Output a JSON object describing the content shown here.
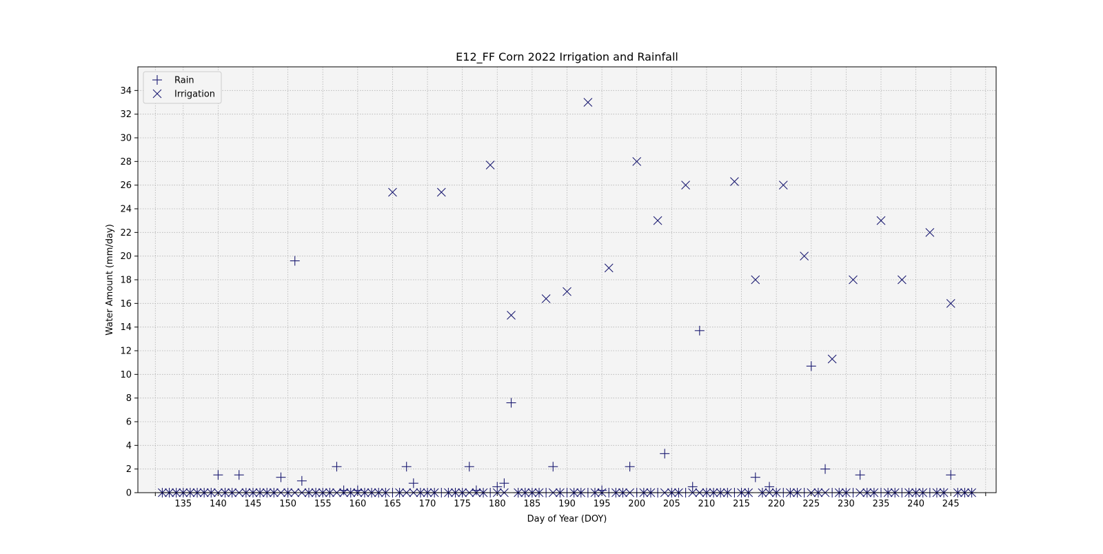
{
  "chart_data": {
    "type": "scatter",
    "title": "E12_FF Corn 2022 Irrigation and Rainfall",
    "xlabel": "Day of Year (DOY)",
    "ylabel": "Water Amount (mm/day)",
    "xlim": [
      128.5,
      251.5
    ],
    "ylim": [
      0,
      36
    ],
    "xticks": [
      131,
      135,
      140,
      145,
      150,
      155,
      160,
      165,
      170,
      175,
      180,
      185,
      190,
      195,
      200,
      205,
      210,
      215,
      220,
      225,
      230,
      235,
      240,
      245,
      250
    ],
    "xtick_labels": [
      "",
      "135",
      "140",
      "145",
      "150",
      "155",
      "160",
      "165",
      "170",
      "175",
      "180",
      "185",
      "190",
      "195",
      "200",
      "205",
      "210",
      "215",
      "220",
      "225",
      "230",
      "235",
      "240",
      "245",
      ""
    ],
    "yticks": [
      0,
      2,
      4,
      6,
      8,
      10,
      12,
      14,
      16,
      18,
      20,
      22,
      24,
      26,
      28,
      30,
      32,
      34
    ],
    "grid": true,
    "legend_position": "top-left",
    "colors": {
      "marker": "#191970",
      "plot_background": "#f4f4f4",
      "grid": "#b0b0b0"
    },
    "series": [
      {
        "name": "Rain",
        "marker": "plus",
        "points": [
          [
            132,
            0
          ],
          [
            133,
            0
          ],
          [
            134,
            0
          ],
          [
            135,
            0
          ],
          [
            136,
            0
          ],
          [
            137,
            0
          ],
          [
            138,
            0
          ],
          [
            139,
            0
          ],
          [
            140,
            1.5
          ],
          [
            141,
            0
          ],
          [
            142,
            0
          ],
          [
            143,
            1.5
          ],
          [
            144,
            0
          ],
          [
            145,
            0
          ],
          [
            146,
            0
          ],
          [
            147,
            0
          ],
          [
            148,
            0
          ],
          [
            149,
            1.3
          ],
          [
            150,
            0
          ],
          [
            151,
            19.6
          ],
          [
            152,
            1.0
          ],
          [
            153,
            0
          ],
          [
            154,
            0
          ],
          [
            155,
            0
          ],
          [
            156,
            0
          ],
          [
            157,
            2.2
          ],
          [
            158,
            0.2
          ],
          [
            159,
            0
          ],
          [
            160,
            0.2
          ],
          [
            161,
            0
          ],
          [
            162,
            0
          ],
          [
            163,
            0
          ],
          [
            164,
            0
          ],
          [
            165,
            0
          ],
          [
            166,
            0
          ],
          [
            167,
            2.2
          ],
          [
            168,
            0.8
          ],
          [
            169,
            0
          ],
          [
            170,
            0
          ],
          [
            171,
            0
          ],
          [
            172,
            0
          ],
          [
            173,
            0
          ],
          [
            174,
            0
          ],
          [
            175,
            0
          ],
          [
            176,
            2.2
          ],
          [
            177,
            0.2
          ],
          [
            178,
            0
          ],
          [
            179,
            0
          ],
          [
            180,
            0.5
          ],
          [
            181,
            0.8
          ],
          [
            182,
            7.6
          ],
          [
            183,
            0
          ],
          [
            184,
            0
          ],
          [
            185,
            0
          ],
          [
            186,
            0
          ],
          [
            187,
            0
          ],
          [
            188,
            2.2
          ],
          [
            189,
            0
          ],
          [
            190,
            0
          ],
          [
            191,
            0
          ],
          [
            192,
            0
          ],
          [
            193,
            0
          ],
          [
            194,
            0
          ],
          [
            195,
            0.2
          ],
          [
            196,
            0
          ],
          [
            197,
            0
          ],
          [
            198,
            0
          ],
          [
            199,
            2.2
          ],
          [
            200,
            0
          ],
          [
            201,
            0
          ],
          [
            202,
            0
          ],
          [
            203,
            0
          ],
          [
            204,
            3.3
          ],
          [
            205,
            0
          ],
          [
            206,
            0
          ],
          [
            207,
            0
          ],
          [
            208,
            0.5
          ],
          [
            209,
            13.7
          ],
          [
            210,
            0
          ],
          [
            211,
            0
          ],
          [
            212,
            0
          ],
          [
            213,
            0
          ],
          [
            214,
            0
          ],
          [
            215,
            0
          ],
          [
            216,
            0
          ],
          [
            217,
            1.3
          ],
          [
            218,
            0
          ],
          [
            219,
            0.5
          ],
          [
            220,
            0
          ],
          [
            221,
            0
          ],
          [
            222,
            0
          ],
          [
            223,
            0
          ],
          [
            224,
            0
          ],
          [
            225,
            10.7
          ],
          [
            226,
            0
          ],
          [
            227,
            2.0
          ],
          [
            228,
            0
          ],
          [
            229,
            0
          ],
          [
            230,
            0
          ],
          [
            231,
            0
          ],
          [
            232,
            1.5
          ],
          [
            233,
            0
          ],
          [
            234,
            0
          ],
          [
            235,
            0
          ],
          [
            236,
            0
          ],
          [
            237,
            0
          ],
          [
            238,
            0
          ],
          [
            239,
            0
          ],
          [
            240,
            0
          ],
          [
            241,
            0
          ],
          [
            242,
            0
          ],
          [
            243,
            0
          ],
          [
            244,
            0
          ],
          [
            245,
            1.5
          ],
          [
            246,
            0
          ],
          [
            247,
            0
          ],
          [
            248,
            0
          ]
        ]
      },
      {
        "name": "Irrigation",
        "marker": "x",
        "points": [
          [
            132,
            0
          ],
          [
            133,
            0
          ],
          [
            134,
            0
          ],
          [
            135,
            0
          ],
          [
            136,
            0
          ],
          [
            137,
            0
          ],
          [
            138,
            0
          ],
          [
            139,
            0
          ],
          [
            140,
            0
          ],
          [
            141,
            0
          ],
          [
            142,
            0
          ],
          [
            143,
            0
          ],
          [
            144,
            0
          ],
          [
            145,
            0
          ],
          [
            146,
            0
          ],
          [
            147,
            0
          ],
          [
            148,
            0
          ],
          [
            149,
            0
          ],
          [
            150,
            0
          ],
          [
            151,
            0
          ],
          [
            152,
            0
          ],
          [
            153,
            0
          ],
          [
            154,
            0
          ],
          [
            155,
            0
          ],
          [
            156,
            0
          ],
          [
            157,
            0
          ],
          [
            158,
            0
          ],
          [
            159,
            0
          ],
          [
            160,
            0
          ],
          [
            161,
            0
          ],
          [
            162,
            0
          ],
          [
            163,
            0
          ],
          [
            164,
            0
          ],
          [
            165,
            25.4
          ],
          [
            166,
            0
          ],
          [
            167,
            0
          ],
          [
            168,
            0
          ],
          [
            169,
            0
          ],
          [
            170,
            0
          ],
          [
            171,
            0
          ],
          [
            172,
            25.4
          ],
          [
            173,
            0
          ],
          [
            174,
            0
          ],
          [
            175,
            0
          ],
          [
            176,
            0
          ],
          [
            177,
            0
          ],
          [
            178,
            0
          ],
          [
            179,
            27.7
          ],
          [
            180,
            0
          ],
          [
            181,
            0
          ],
          [
            182,
            15
          ],
          [
            183,
            0
          ],
          [
            184,
            0
          ],
          [
            185,
            0
          ],
          [
            186,
            0
          ],
          [
            187,
            16.4
          ],
          [
            188,
            0
          ],
          [
            189,
            0
          ],
          [
            190,
            17
          ],
          [
            191,
            0
          ],
          [
            192,
            0
          ],
          [
            193,
            33
          ],
          [
            194,
            0
          ],
          [
            195,
            0
          ],
          [
            196,
            19
          ],
          [
            197,
            0
          ],
          [
            198,
            0
          ],
          [
            199,
            0
          ],
          [
            200,
            28
          ],
          [
            201,
            0
          ],
          [
            202,
            0
          ],
          [
            203,
            23
          ],
          [
            204,
            0
          ],
          [
            205,
            0
          ],
          [
            206,
            0
          ],
          [
            207,
            26
          ],
          [
            208,
            0
          ],
          [
            209,
            0
          ],
          [
            210,
            0
          ],
          [
            211,
            0
          ],
          [
            212,
            0
          ],
          [
            213,
            0
          ],
          [
            214,
            26.3
          ],
          [
            215,
            0
          ],
          [
            216,
            0
          ],
          [
            217,
            18
          ],
          [
            218,
            0
          ],
          [
            219,
            0
          ],
          [
            220,
            0
          ],
          [
            221,
            26
          ],
          [
            222,
            0
          ],
          [
            223,
            0
          ],
          [
            224,
            20
          ],
          [
            225,
            0
          ],
          [
            226,
            0
          ],
          [
            227,
            0
          ],
          [
            228,
            11.3
          ],
          [
            229,
            0
          ],
          [
            230,
            0
          ],
          [
            231,
            18
          ],
          [
            232,
            0
          ],
          [
            233,
            0
          ],
          [
            234,
            0
          ],
          [
            235,
            23
          ],
          [
            236,
            0
          ],
          [
            237,
            0
          ],
          [
            238,
            18
          ],
          [
            239,
            0
          ],
          [
            240,
            0
          ],
          [
            241,
            0
          ],
          [
            242,
            22
          ],
          [
            243,
            0
          ],
          [
            244,
            0
          ],
          [
            245,
            16
          ],
          [
            246,
            0
          ],
          [
            247,
            0
          ],
          [
            248,
            0
          ]
        ]
      }
    ]
  }
}
